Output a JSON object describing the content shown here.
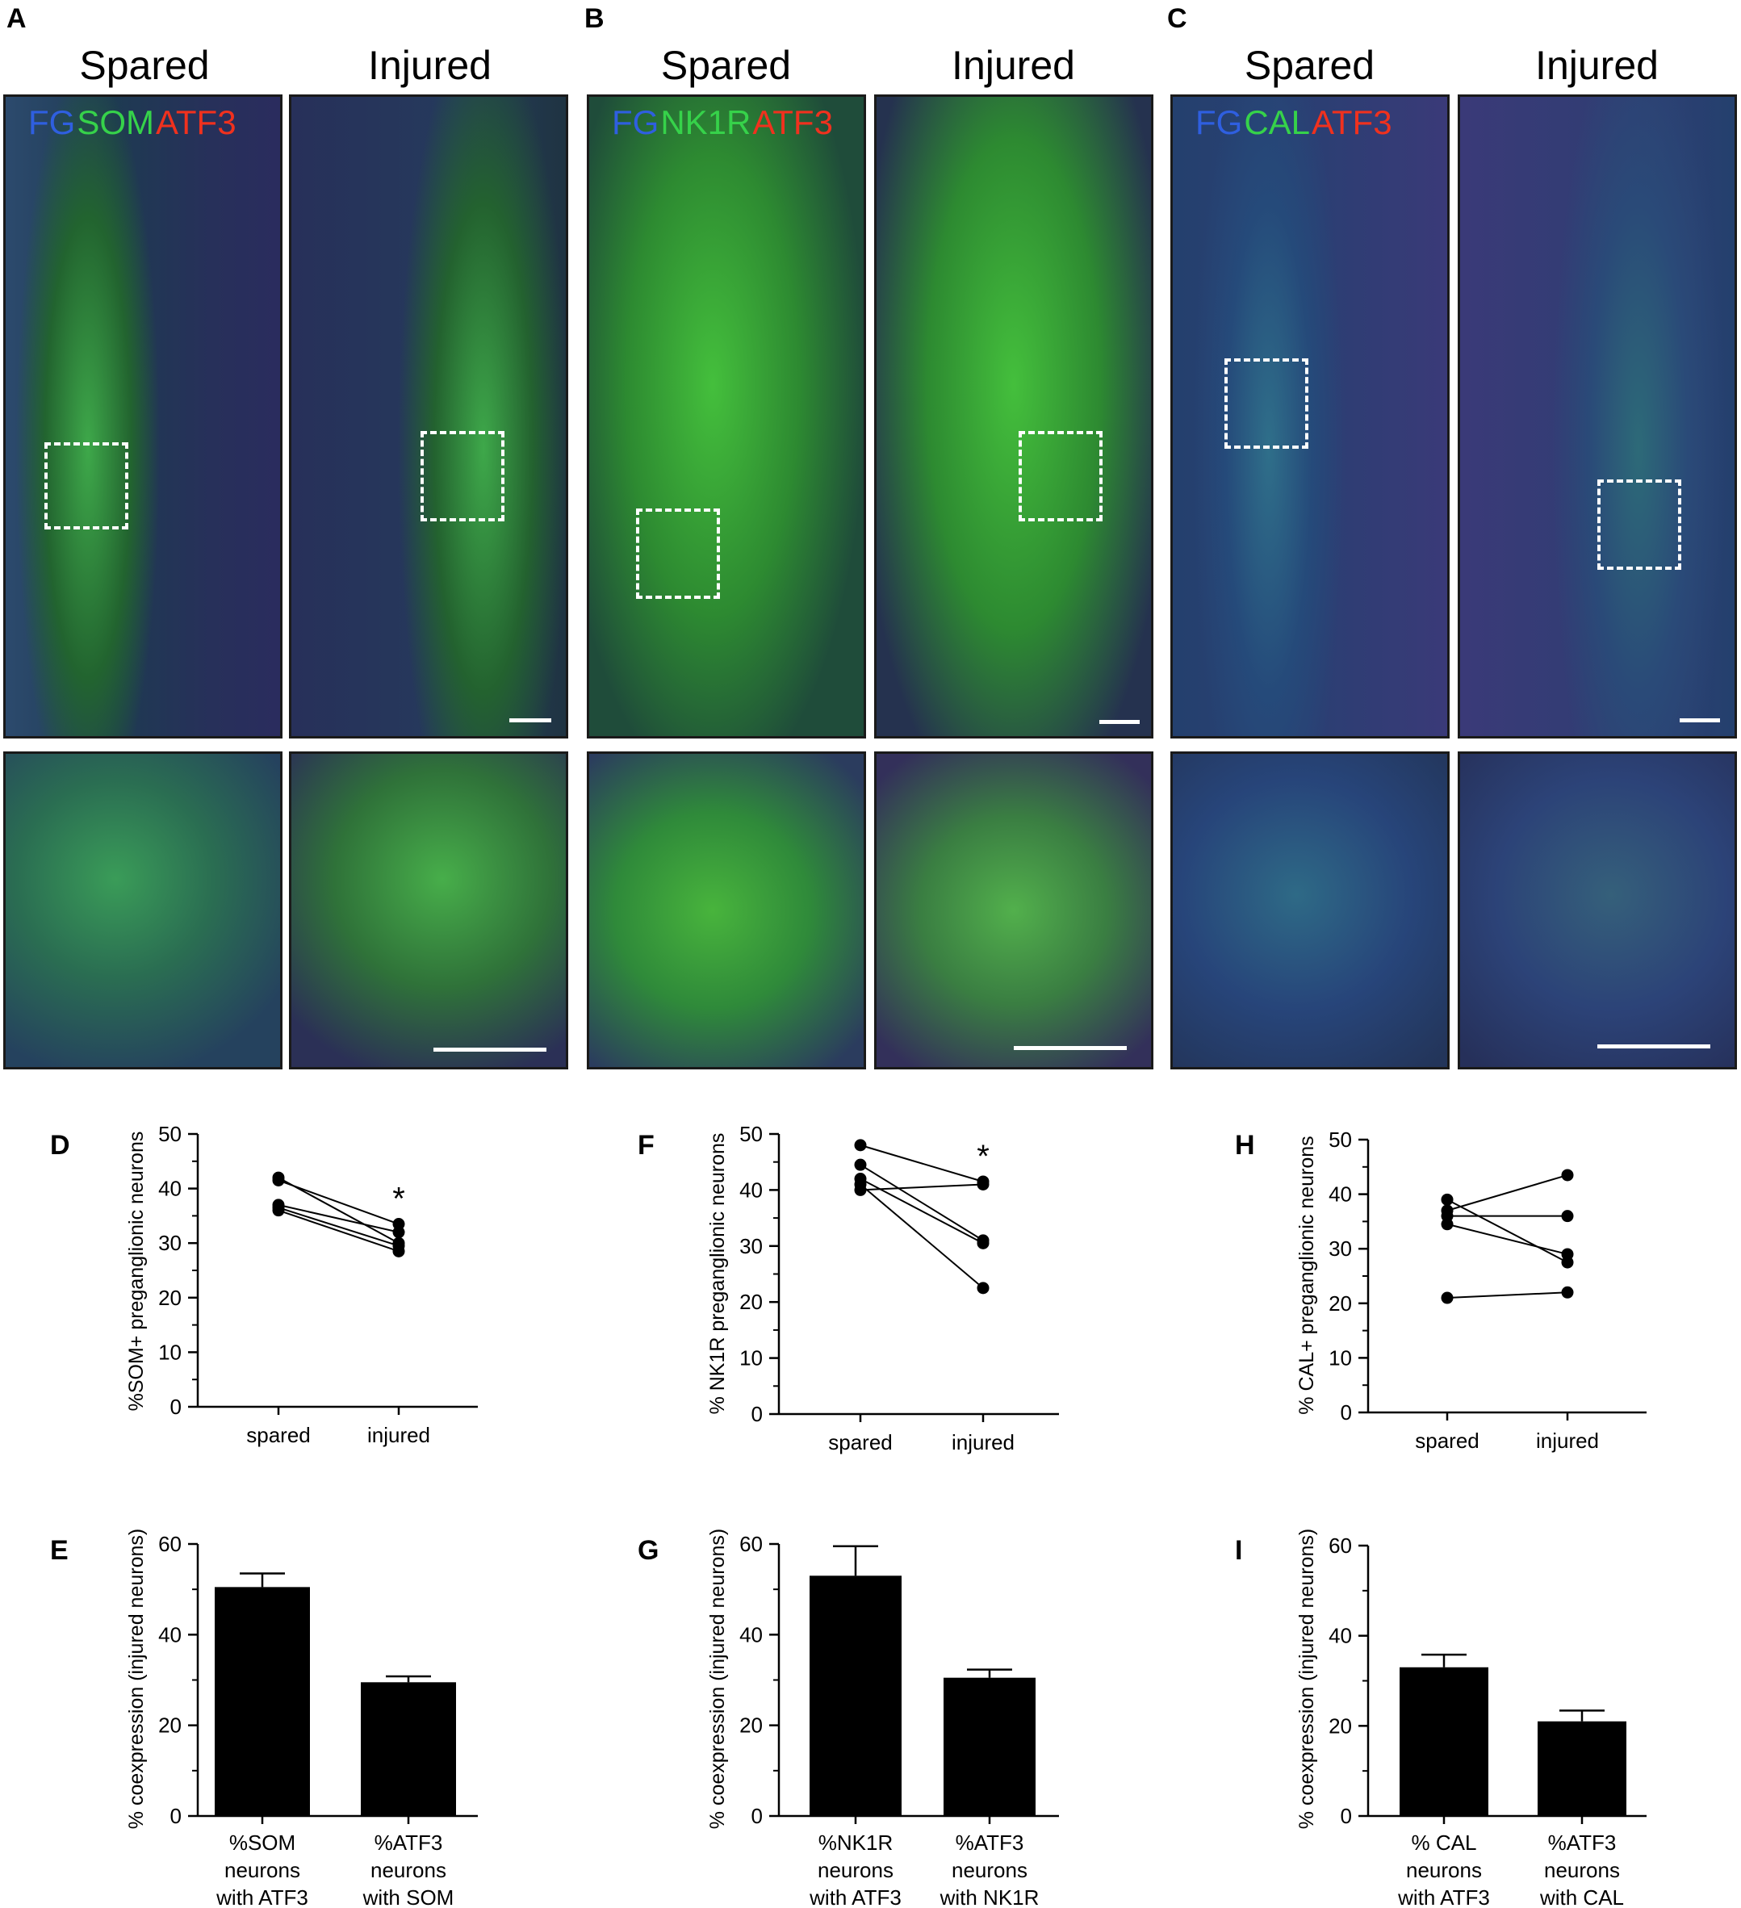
{
  "panel_letters": [
    "A",
    "B",
    "C",
    "D",
    "E",
    "F",
    "G",
    "H",
    "I"
  ],
  "columns": [
    {
      "letter": "A",
      "spared": "Spared",
      "injured": "Injured",
      "stain": [
        "FG",
        "SOM",
        "ATF3"
      ]
    },
    {
      "letter": "B",
      "spared": "Spared",
      "injured": "Injured",
      "stain": [
        "FG",
        "NK1R",
        "ATF3"
      ]
    },
    {
      "letter": "C",
      "spared": "Spared",
      "injured": "Injured",
      "stain": [
        "FG",
        "CAL",
        "ATF3"
      ]
    }
  ],
  "colors": {
    "blue": "#2f5fe0",
    "green": "#36d24a",
    "red": "#f0311e",
    "bar": "#000000"
  },
  "chart_data": [
    {
      "panel": "D",
      "type": "line",
      "ylabel": "%SOM+ preganglionic neurons",
      "categories": [
        "spared",
        "injured"
      ],
      "ylim": [
        0,
        50
      ],
      "yticks": [
        0,
        10,
        20,
        30,
        40,
        50
      ],
      "series": [
        {
          "values": [
            42,
            30
          ]
        },
        {
          "values": [
            41.5,
            33.5
          ]
        },
        {
          "values": [
            37,
            32
          ]
        },
        {
          "values": [
            36.5,
            29.5
          ]
        },
        {
          "values": [
            36,
            28.5
          ]
        }
      ],
      "annotation": "*"
    },
    {
      "panel": "E",
      "type": "bar",
      "ylabel": "% coexpression (injured neurons)",
      "categories": [
        "%SOM\nneurons\nwith ATF3",
        "%ATF3\nneurons\nwith SOM"
      ],
      "values": [
        50.5,
        29.5
      ],
      "errors": [
        3,
        1.3
      ],
      "ylim": [
        0,
        60
      ],
      "yticks": [
        0,
        20,
        40,
        60
      ]
    },
    {
      "panel": "F",
      "type": "line",
      "ylabel": "% NK1R preganglionic neurons",
      "categories": [
        "spared",
        "injured"
      ],
      "ylim": [
        0,
        50
      ],
      "yticks": [
        0,
        10,
        20,
        30,
        40,
        50
      ],
      "series": [
        {
          "values": [
            48,
            41.5
          ]
        },
        {
          "values": [
            44.5,
            31
          ]
        },
        {
          "values": [
            42,
            30.5
          ]
        },
        {
          "values": [
            41,
            22.5
          ]
        },
        {
          "values": [
            40,
            41
          ]
        }
      ],
      "annotation": "*"
    },
    {
      "panel": "G",
      "type": "bar",
      "ylabel": "% coexpression (injured neurons)",
      "categories": [
        "%NK1R\nneurons\nwith ATF3",
        "%ATF3\nneurons\nwith NK1R"
      ],
      "values": [
        53,
        30.5
      ],
      "errors": [
        6.5,
        1.8
      ],
      "ylim": [
        0,
        60
      ],
      "yticks": [
        0,
        20,
        40,
        60
      ]
    },
    {
      "panel": "H",
      "type": "line",
      "ylabel": "% CAL+ preganglionic neurons",
      "categories": [
        "spared",
        "injured"
      ],
      "ylim": [
        0,
        50
      ],
      "yticks": [
        0,
        10,
        20,
        30,
        40,
        50
      ],
      "series": [
        {
          "values": [
            39,
            27.5
          ]
        },
        {
          "values": [
            37,
            43.5
          ]
        },
        {
          "values": [
            36,
            36
          ]
        },
        {
          "values": [
            34.5,
            29
          ]
        },
        {
          "values": [
            21,
            22
          ]
        }
      ]
    },
    {
      "panel": "I",
      "type": "bar",
      "ylabel": "% coexpression (injured neurons)",
      "categories": [
        "% CAL\nneurons\nwith ATF3",
        "%ATF3\nneurons\nwith CAL"
      ],
      "values": [
        33,
        21
      ],
      "errors": [
        2.8,
        2.4
      ],
      "ylim": [
        0,
        60
      ],
      "yticks": [
        0,
        20,
        40,
        60
      ]
    }
  ]
}
